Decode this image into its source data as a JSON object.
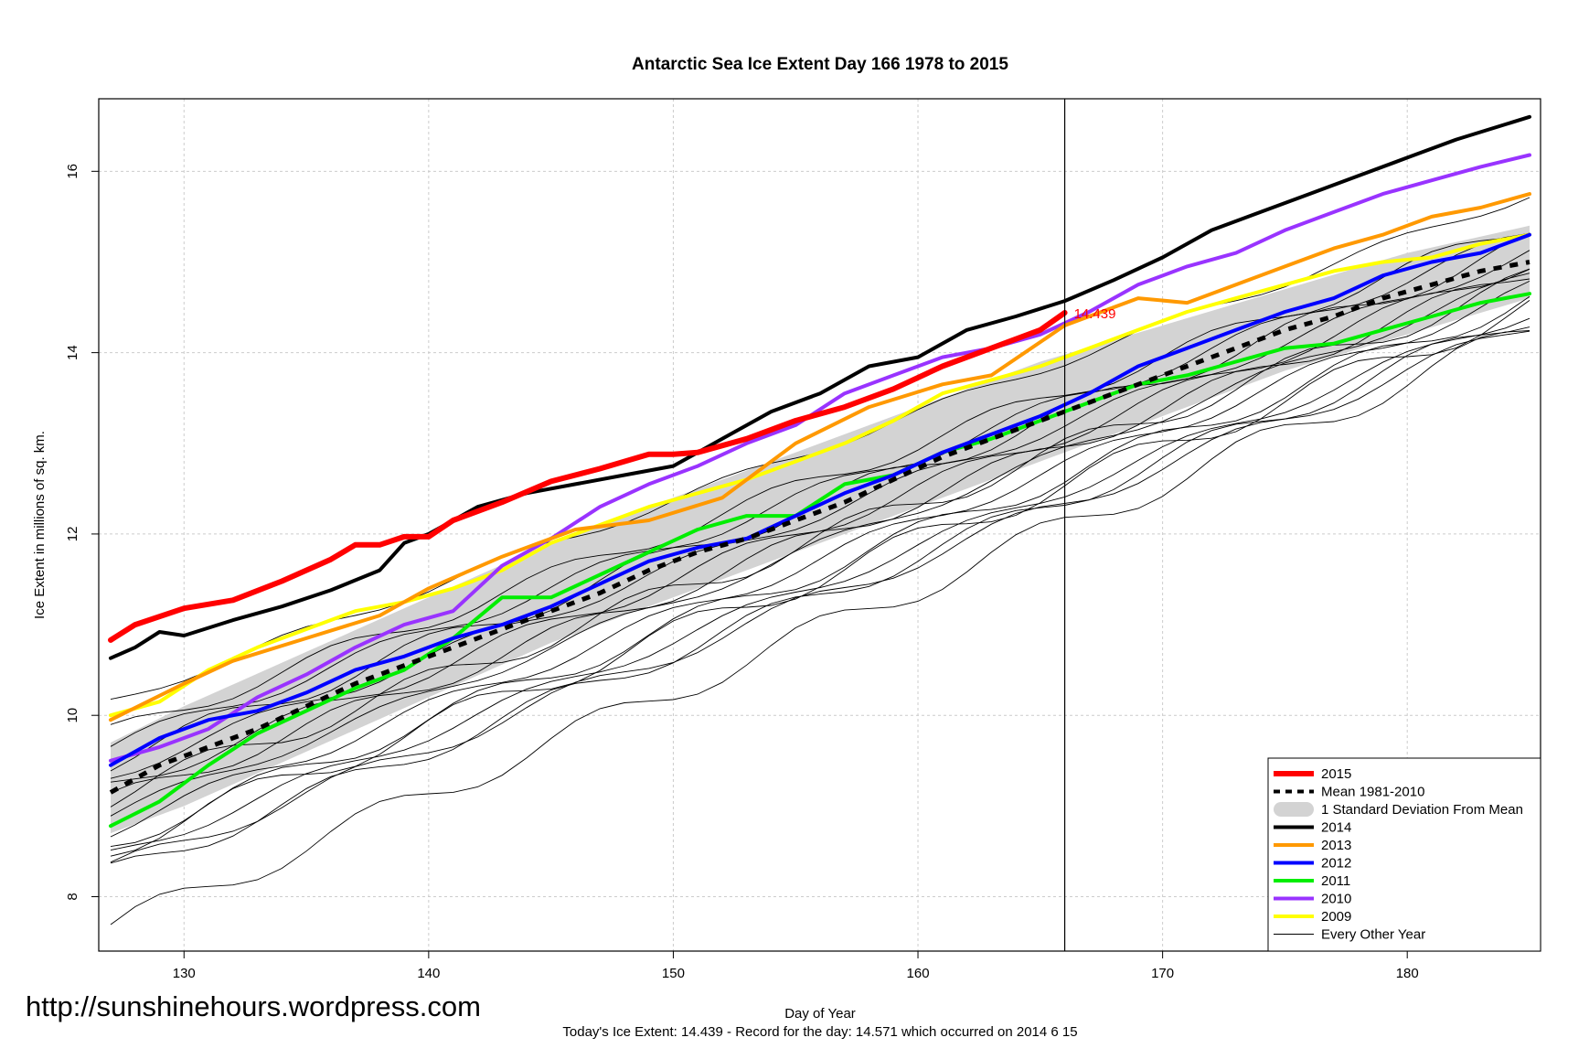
{
  "chart_data": {
    "type": "line",
    "title": "Antarctic Sea Ice Extent Day 166 1978 to 2015",
    "xlabel": "Day of Year",
    "ylabel": "Ice Extent in millions of sq. km.",
    "xlim": [
      127,
      185
    ],
    "ylim": [
      7.4,
      16.8
    ],
    "x_ticks": [
      130,
      140,
      150,
      160,
      170,
      180
    ],
    "y_ticks": [
      8,
      10,
      12,
      14,
      16
    ],
    "grid": true,
    "legend_position": "bottom-right",
    "marker_day": 166,
    "today_label": "14.439",
    "today_color": "#ff0000",
    "footer": "Today's Ice Extent: 14.439  - Record for the day: 14.571 which occurred on 2014 6 15",
    "watermark": "http://sunshinehours.wordpress.com",
    "legend": [
      {
        "label": "2015",
        "color": "#ff0000",
        "style": "thick"
      },
      {
        "label": "Mean 1981-2010",
        "color": "#000000",
        "style": "dashed"
      },
      {
        "label": "1 Standard Deviation From Mean",
        "color": "#d3d3d3",
        "style": "band"
      },
      {
        "label": "2014",
        "color": "#000000",
        "style": "solid"
      },
      {
        "label": "2013",
        "color": "#ff9900",
        "style": "solid"
      },
      {
        "label": "2012",
        "color": "#0000ff",
        "style": "solid"
      },
      {
        "label": "2011",
        "color": "#00ee00",
        "style": "solid"
      },
      {
        "label": "2010",
        "color": "#9933ff",
        "style": "solid"
      },
      {
        "label": "2009",
        "color": "#ffff00",
        "style": "solid"
      },
      {
        "label": "Every Other Year",
        "color": "#000000",
        "style": "thin"
      }
    ],
    "std_band": {
      "x": [
        127,
        130,
        135,
        140,
        145,
        150,
        155,
        160,
        165,
        170,
        175,
        180,
        185
      ],
      "lower": [
        8.7,
        9.0,
        9.6,
        10.2,
        10.8,
        11.3,
        11.8,
        12.3,
        12.8,
        13.3,
        13.8,
        14.2,
        14.6
      ],
      "upper": [
        9.7,
        10.1,
        10.7,
        11.3,
        11.9,
        12.4,
        12.9,
        13.4,
        13.9,
        14.3,
        14.7,
        15.1,
        15.4
      ]
    },
    "series": [
      {
        "name": "2015",
        "color": "#ff0000",
        "width": 6,
        "x": [
          127,
          128,
          130,
          132,
          134,
          136,
          137,
          138,
          139,
          140,
          141,
          143,
          145,
          147,
          149,
          150,
          151,
          153,
          155,
          157,
          159,
          161,
          163,
          165,
          166
        ],
        "y": [
          10.83,
          11.0,
          11.18,
          11.27,
          11.48,
          11.72,
          11.88,
          11.88,
          11.97,
          11.97,
          12.15,
          12.35,
          12.58,
          12.72,
          12.88,
          12.88,
          12.9,
          13.05,
          13.25,
          13.4,
          13.6,
          13.85,
          14.05,
          14.25,
          14.44
        ]
      },
      {
        "name": "2014",
        "color": "#000000",
        "width": 4,
        "x": [
          127,
          128,
          129,
          130,
          132,
          134,
          136,
          138,
          139,
          140,
          142,
          144,
          146,
          148,
          150,
          152,
          154,
          156,
          158,
          160,
          162,
          164,
          166,
          168,
          170,
          172,
          174,
          176,
          178,
          180,
          182,
          185
        ],
        "y": [
          10.63,
          10.75,
          10.92,
          10.88,
          11.05,
          11.2,
          11.38,
          11.6,
          11.9,
          12.0,
          12.3,
          12.45,
          12.55,
          12.65,
          12.75,
          13.05,
          13.35,
          13.55,
          13.85,
          13.95,
          14.25,
          14.4,
          14.57,
          14.8,
          15.05,
          15.35,
          15.55,
          15.75,
          15.95,
          16.15,
          16.35,
          16.6
        ]
      },
      {
        "name": "2013",
        "color": "#ff9900",
        "width": 4,
        "x": [
          127,
          130,
          132,
          135,
          138,
          140,
          143,
          146,
          149,
          152,
          155,
          158,
          161,
          163,
          166,
          169,
          171,
          173,
          175,
          177,
          179,
          181,
          183,
          185
        ],
        "y": [
          9.95,
          10.35,
          10.6,
          10.85,
          11.1,
          11.4,
          11.75,
          12.05,
          12.15,
          12.4,
          13.0,
          13.4,
          13.65,
          13.75,
          14.3,
          14.6,
          14.55,
          14.75,
          14.95,
          15.15,
          15.3,
          15.5,
          15.6,
          15.75
        ]
      },
      {
        "name": "2012",
        "color": "#0000ff",
        "width": 4,
        "x": [
          127,
          129,
          131,
          133,
          135,
          137,
          139,
          141,
          143,
          145,
          147,
          149,
          151,
          153,
          155,
          157,
          159,
          161,
          163,
          165,
          167,
          169,
          171,
          173,
          175,
          177,
          179,
          181,
          183,
          185
        ],
        "y": [
          9.45,
          9.75,
          9.95,
          10.05,
          10.25,
          10.5,
          10.65,
          10.85,
          11.0,
          11.2,
          11.45,
          11.7,
          11.85,
          11.95,
          12.2,
          12.45,
          12.65,
          12.9,
          13.1,
          13.3,
          13.55,
          13.85,
          14.05,
          14.25,
          14.45,
          14.6,
          14.85,
          15.0,
          15.1,
          15.3
        ]
      },
      {
        "name": "2011",
        "color": "#00ee00",
        "width": 4,
        "x": [
          127,
          129,
          131,
          133,
          135,
          137,
          139,
          141,
          143,
          145,
          147,
          149,
          151,
          153,
          155,
          157,
          159,
          161,
          163,
          165,
          167,
          169,
          171,
          173,
          175,
          177,
          179,
          181,
          183,
          185
        ],
        "y": [
          8.78,
          9.05,
          9.45,
          9.8,
          10.05,
          10.3,
          10.5,
          10.85,
          11.3,
          11.3,
          11.55,
          11.8,
          12.05,
          12.2,
          12.2,
          12.55,
          12.65,
          12.9,
          13.05,
          13.25,
          13.45,
          13.65,
          13.75,
          13.9,
          14.05,
          14.1,
          14.25,
          14.4,
          14.55,
          14.65
        ]
      },
      {
        "name": "2010",
        "color": "#9933ff",
        "width": 4,
        "x": [
          127,
          129,
          131,
          133,
          135,
          137,
          139,
          141,
          143,
          145,
          147,
          149,
          151,
          153,
          155,
          157,
          159,
          161,
          163,
          165,
          167,
          169,
          171,
          173,
          175,
          177,
          179,
          181,
          183,
          185
        ],
        "y": [
          9.5,
          9.65,
          9.85,
          10.2,
          10.45,
          10.75,
          11.0,
          11.15,
          11.65,
          11.95,
          12.3,
          12.55,
          12.75,
          13.0,
          13.2,
          13.55,
          13.75,
          13.95,
          14.05,
          14.2,
          14.45,
          14.75,
          14.95,
          15.1,
          15.35,
          15.55,
          15.75,
          15.9,
          16.05,
          16.18
        ]
      },
      {
        "name": "2009",
        "color": "#ffff00",
        "width": 4,
        "x": [
          127,
          129,
          131,
          133,
          135,
          137,
          139,
          141,
          143,
          145,
          147,
          149,
          151,
          153,
          155,
          157,
          159,
          161,
          163,
          165,
          167,
          169,
          171,
          173,
          175,
          177,
          179,
          181,
          183,
          185
        ],
        "y": [
          10.0,
          10.15,
          10.5,
          10.75,
          10.95,
          11.15,
          11.25,
          11.4,
          11.6,
          11.9,
          12.1,
          12.3,
          12.45,
          12.6,
          12.8,
          13.0,
          13.25,
          13.55,
          13.7,
          13.85,
          14.05,
          14.25,
          14.45,
          14.6,
          14.75,
          14.9,
          15.0,
          15.05,
          15.2,
          15.3
        ]
      }
    ],
    "mean": {
      "name": "Mean 1981-2010",
      "x": [
        127,
        129,
        131,
        133,
        135,
        137,
        139,
        141,
        143,
        145,
        147,
        149,
        151,
        153,
        155,
        157,
        159,
        161,
        163,
        165,
        167,
        169,
        171,
        173,
        175,
        177,
        179,
        181,
        183,
        185
      ],
      "y": [
        9.15,
        9.45,
        9.65,
        9.85,
        10.1,
        10.35,
        10.55,
        10.75,
        10.95,
        11.15,
        11.35,
        11.6,
        11.8,
        11.95,
        12.15,
        12.35,
        12.6,
        12.85,
        13.05,
        13.25,
        13.45,
        13.65,
        13.85,
        14.05,
        14.25,
        14.4,
        14.6,
        14.75,
        14.9,
        15.0
      ]
    },
    "other_years": [
      {
        "start": 8.3,
        "end": 14.3,
        "wobble": 0.1
      },
      {
        "start": 8.45,
        "end": 14.45,
        "wobble": 0.08
      },
      {
        "start": 8.6,
        "end": 14.6,
        "wobble": 0.12
      },
      {
        "start": 8.75,
        "end": 14.7,
        "wobble": 0.09
      },
      {
        "start": 8.9,
        "end": 14.85,
        "wobble": 0.07
      },
      {
        "start": 9.05,
        "end": 14.9,
        "wobble": 0.11
      },
      {
        "start": 9.2,
        "end": 15.0,
        "wobble": 0.1
      },
      {
        "start": 9.35,
        "end": 15.1,
        "wobble": 0.08
      },
      {
        "start": 9.5,
        "end": 15.2,
        "wobble": 0.12
      },
      {
        "start": 9.65,
        "end": 15.3,
        "wobble": 0.09
      },
      {
        "start": 9.8,
        "end": 15.4,
        "wobble": 0.1
      },
      {
        "start": 10.15,
        "end": 15.75,
        "wobble": 0.06
      },
      {
        "start": 8.55,
        "end": 14.5,
        "wobble": 0.14
      },
      {
        "start": 9.1,
        "end": 14.8,
        "wobble": 0.13
      },
      {
        "start": 7.65,
        "end": 14.25,
        "wobble": 0.15
      },
      {
        "start": 8.25,
        "end": 14.4,
        "wobble": 0.12
      }
    ]
  }
}
